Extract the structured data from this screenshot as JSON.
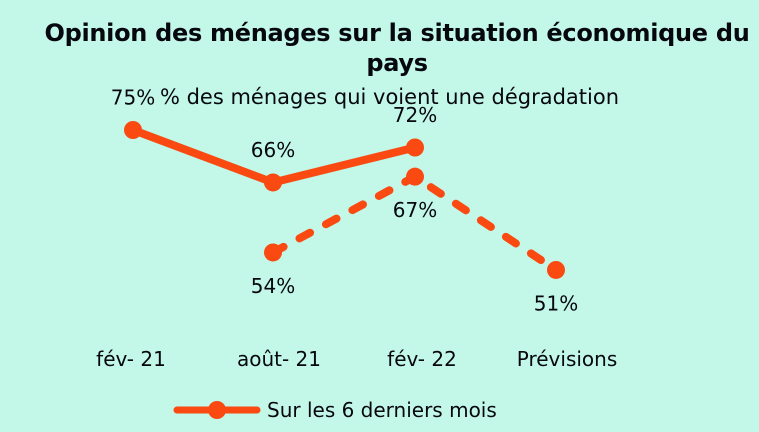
{
  "window": {
    "background": "#c3f8e8",
    "text_color": "#070710",
    "accent_color": "#fa4a12"
  },
  "chart_data": {
    "type": "line",
    "title": "Opinion des ménages sur la situation économique du pays",
    "subtitle": "% des ménages qui voient une dégradation",
    "categories": [
      "fév- 21",
      "août- 21",
      "fév- 22",
      "Prévisions"
    ],
    "series": [
      {
        "name": "Sur les 6 derniers mois",
        "line_style": "solid",
        "values": [
          75,
          66,
          72,
          null
        ],
        "data_label_position": "above"
      },
      {
        "name": "",
        "line_style": "dashed",
        "values": [
          null,
          54,
          67,
          51
        ],
        "data_label_position": "below"
      }
    ],
    "label_format": "{v}%",
    "line_color": "#fa4a12",
    "marker": "circle",
    "ylim": [
      45,
      80
    ],
    "grid": false,
    "legend": {
      "position": "bottom-left",
      "entries": [
        "Sur les 6 derniers mois"
      ]
    }
  }
}
